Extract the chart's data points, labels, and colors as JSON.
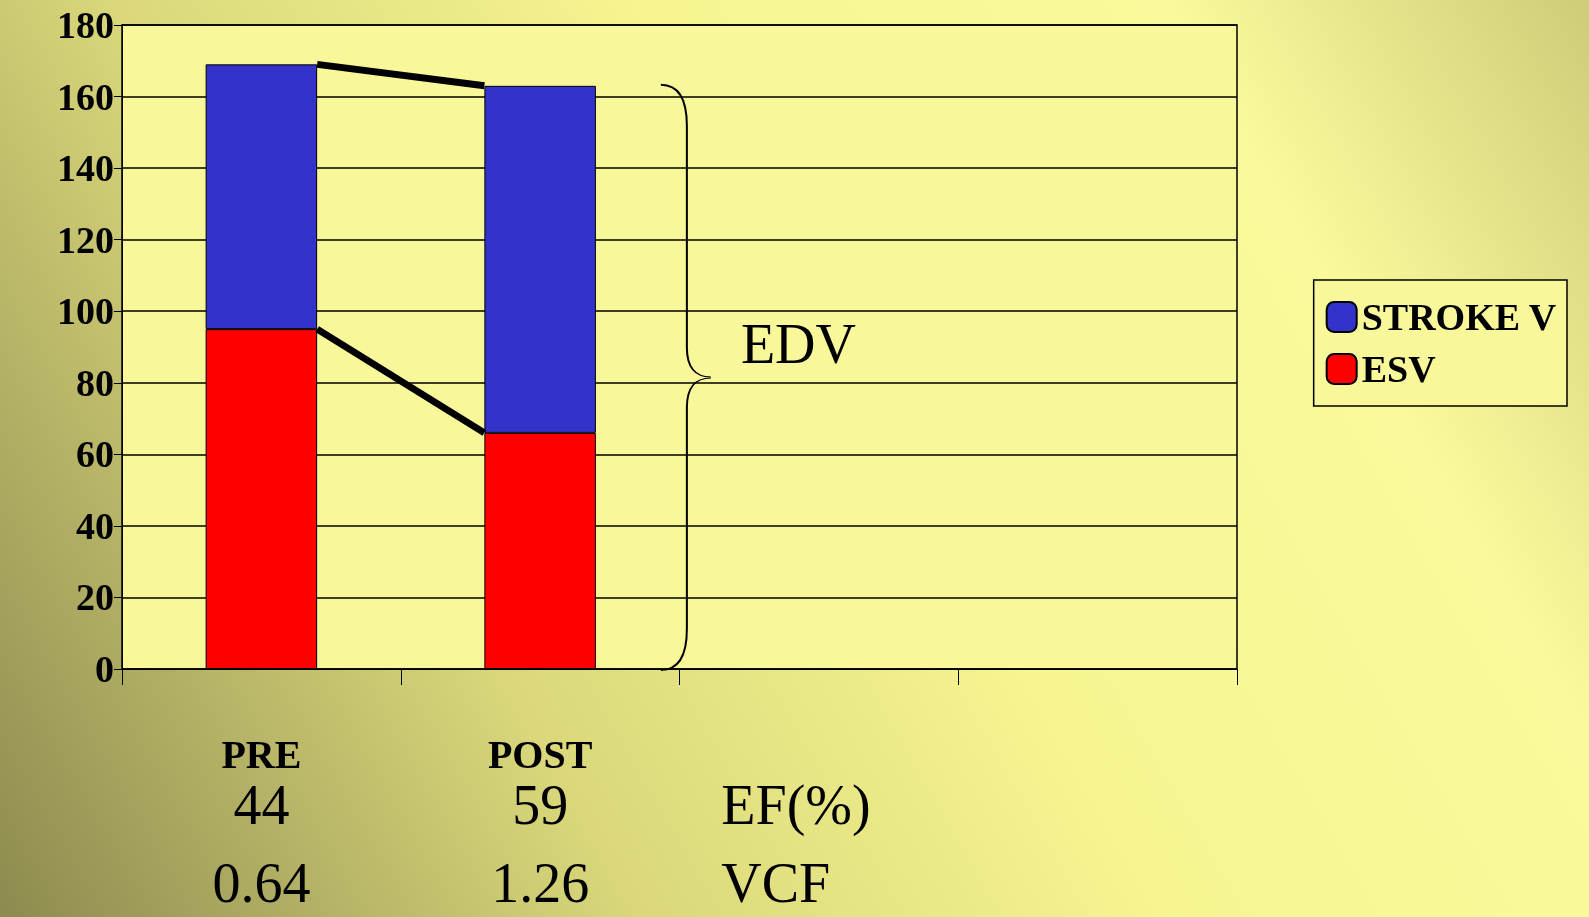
{
  "chart_data": {
    "type": "bar",
    "stacked": true,
    "categories": [
      "PRE",
      "POST",
      null,
      null
    ],
    "series": [
      {
        "name": "ESV",
        "color": "#ff0000",
        "values": [
          95,
          66,
          null,
          null
        ]
      },
      {
        "name": "STROKE V",
        "color": "#3333cc",
        "values": [
          74,
          97,
          null,
          null
        ]
      }
    ],
    "ylim": [
      0,
      180
    ],
    "yticks": [
      0,
      20,
      40,
      60,
      80,
      100,
      120,
      140,
      160,
      180
    ],
    "grid": "y",
    "legend": "right",
    "annotations": [
      "EDV",
      "44",
      "59",
      "EF(%)",
      "0.64",
      "1.26",
      "VCF"
    ]
  }
}
